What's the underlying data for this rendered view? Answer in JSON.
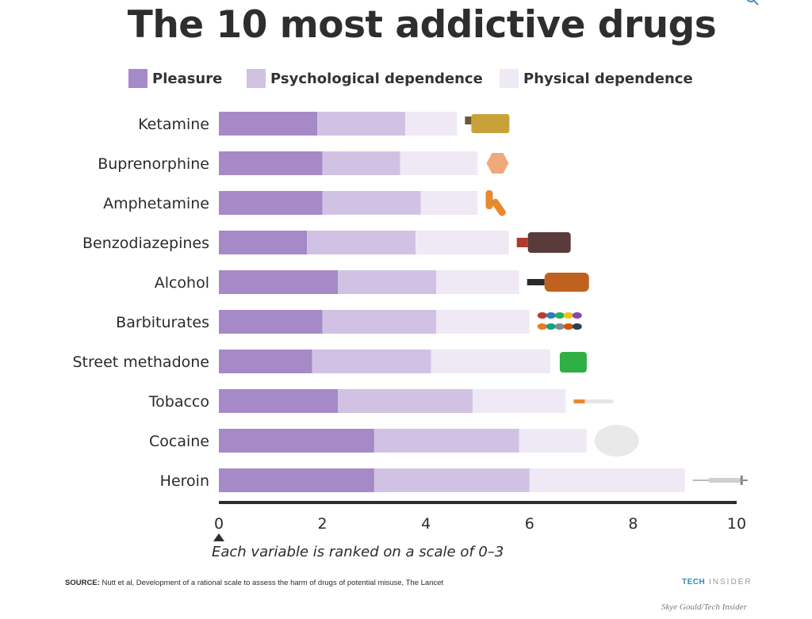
{
  "title": "The 10 most addictive drugs",
  "legend": [
    {
      "label": "Pleasure",
      "color": "#a58ac7"
    },
    {
      "label": "Psychological dependence",
      "color": "#d1c2e3"
    },
    {
      "label": "Physical dependence",
      "color": "#efe9f6"
    }
  ],
  "note": "Each variable is ranked on a scale of 0–3",
  "source_label": "SOURCE:",
  "source_text": "Nutt et al, Development of a rational scale to assess the harm of drugs of potential misuse, The Lancet",
  "brand_bold": "TECH",
  "brand_rest": "INSIDER",
  "credit": "Skye Gould/Tech Insider",
  "chart_data": {
    "type": "bar",
    "orientation": "horizontal",
    "stacked": true,
    "title": "The 10 most addictive drugs",
    "categories": [
      "Ketamine",
      "Buprenorphine",
      "Amphetamine",
      "Benzodiazepines",
      "Alcohol",
      "Barbiturates",
      "Street methadone",
      "Tobacco",
      "Cocaine",
      "Heroin"
    ],
    "series": [
      {
        "name": "Pleasure",
        "color": "#a58ac7",
        "values": [
          1.9,
          2.0,
          2.0,
          1.7,
          2.3,
          2.0,
          1.8,
          2.3,
          3.0,
          3.0
        ]
      },
      {
        "name": "Psychological dependence",
        "color": "#d1c2e3",
        "values": [
          1.7,
          1.5,
          1.9,
          2.1,
          1.9,
          2.2,
          2.3,
          2.6,
          2.8,
          3.0
        ]
      },
      {
        "name": "Physical dependence",
        "color": "#efe9f6",
        "values": [
          1.0,
          1.5,
          1.1,
          1.8,
          1.6,
          1.8,
          2.3,
          1.8,
          1.3,
          3.0
        ]
      }
    ],
    "xlim": [
      0,
      10
    ],
    "xticks": [
      "0",
      "2",
      "4",
      "6",
      "8",
      "10"
    ],
    "grid": false,
    "legend_position": "top"
  }
}
